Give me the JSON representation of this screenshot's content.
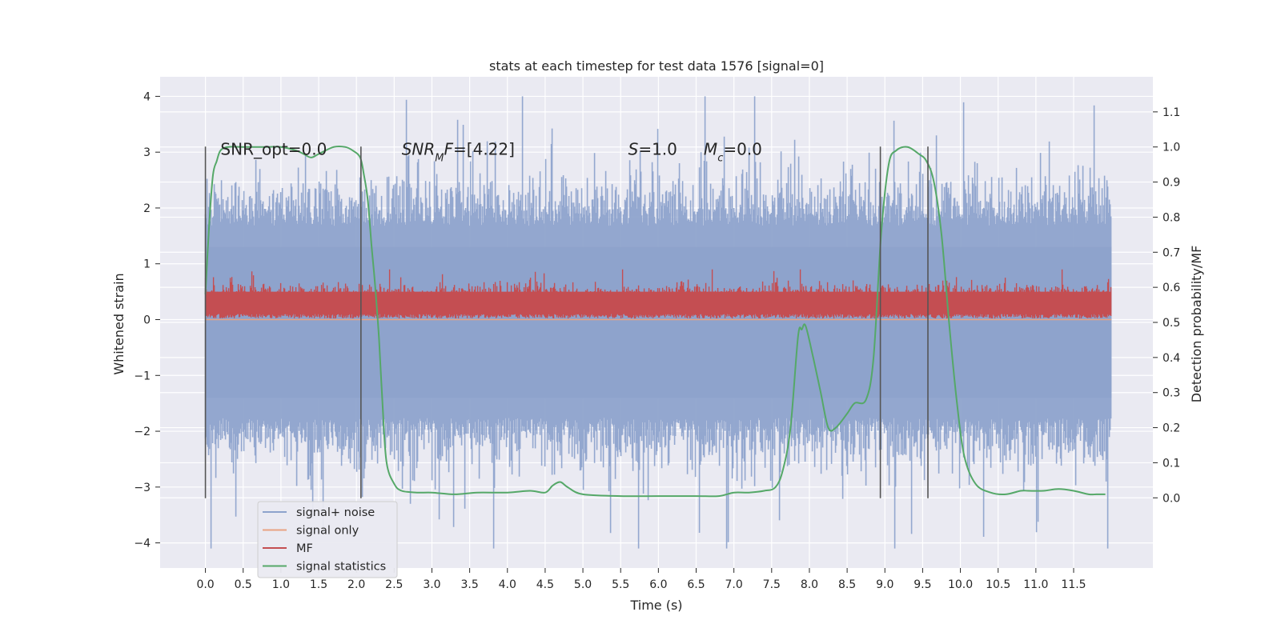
{
  "chart_data": {
    "type": "line",
    "title": "stats at each timestep for test data 1576 [signal=0]",
    "xlabel": "Time (s)",
    "ylabel": "Whitened strain",
    "y2label": "Detection probability/MF",
    "xlim": [
      -0.6,
      12.55
    ],
    "ylim": [
      -4.45,
      4.35
    ],
    "y2lim": [
      -0.2,
      1.2
    ],
    "xticks": [
      0.0,
      0.5,
      1.0,
      1.5,
      2.0,
      2.5,
      3.0,
      3.5,
      4.0,
      4.5,
      5.0,
      5.5,
      6.0,
      6.5,
      7.0,
      7.5,
      8.0,
      8.5,
      9.0,
      9.5,
      10.0,
      10.5,
      11.0,
      11.5
    ],
    "xtick_labels": [
      "0.0",
      "0.5",
      "1.0",
      "1.5",
      "2.0",
      "2.5",
      "3.0",
      "3.5",
      "4.0",
      "4.5",
      "5.0",
      "5.5",
      "6.0",
      "6.5",
      "7.0",
      "7.5",
      "8.0",
      "8.5",
      "9.0",
      "9.5",
      "10.0",
      "10.5",
      "11.0",
      "11.5"
    ],
    "yticks": [
      -4,
      -3,
      -2,
      -1,
      0,
      1,
      2,
      3,
      4
    ],
    "ytick_labels": [
      "−4",
      "−3",
      "−2",
      "−1",
      "0",
      "1",
      "2",
      "3",
      "4"
    ],
    "y2ticks": [
      0.0,
      0.1,
      0.2,
      0.3,
      0.4,
      0.5,
      0.6,
      0.7,
      0.8,
      0.9,
      1.0,
      1.1
    ],
    "y2tick_labels": [
      "0.0",
      "0.1",
      "0.2",
      "0.3",
      "0.4",
      "0.5",
      "0.6",
      "0.7",
      "0.8",
      "0.9",
      "1.0",
      "1.1"
    ],
    "grid": true,
    "legend_position": "lower-left",
    "legend": [
      {
        "name": "signal+ noise",
        "color": "#8ea3cc"
      },
      {
        "name": "signal only",
        "color": "#e8a283"
      },
      {
        "name": "MF",
        "color": "#c44e52"
      },
      {
        "name": "signal statistics",
        "color": "#55a868"
      }
    ],
    "annotations": [
      {
        "text": "SNR_opt=0.0",
        "x": 0.2,
        "y": 3.05
      },
      {
        "text": "SNR_MF=[4.22]",
        "x": 2.6,
        "y": 3.05
      },
      {
        "text": "S=1.0",
        "x": 5.6,
        "y": 3.05
      },
      {
        "text": "M_c=0.0",
        "x": 6.6,
        "y": 3.05
      }
    ],
    "vertical_lines": {
      "x": [
        0.0,
        2.06,
        8.94,
        9.57
      ],
      "ymin": -3.2,
      "ymax": 3.1,
      "color": "#555555"
    },
    "series": [
      {
        "name": "signal+ noise",
        "color": "#8ea3cc",
        "envelope": {
          "x_range": [
            0.0,
            12.0
          ],
          "upper_typical": 2.1,
          "lower_typical": -2.2,
          "peak_max": 4.0,
          "peak_min": -4.1
        }
      },
      {
        "name": "signal only",
        "color": "#e8a283",
        "values_constant": 0.0
      },
      {
        "name": "MF",
        "color": "#c44e52",
        "envelope": {
          "x_range": [
            0.0,
            12.0
          ],
          "lower": 0.02,
          "upper_typical": 0.6,
          "peak_max": 0.9
        }
      },
      {
        "name": "signal statistics",
        "color": "#55a868",
        "axis": "right",
        "x": [
          0.0,
          0.05,
          0.1,
          0.15,
          0.2,
          0.3,
          0.5,
          0.8,
          1.0,
          1.2,
          1.3,
          1.4,
          1.5,
          1.7,
          1.85,
          1.95,
          2.05,
          2.1,
          2.15,
          2.2,
          2.25,
          2.3,
          2.35,
          2.4,
          2.5,
          2.6,
          2.8,
          3.0,
          3.3,
          3.6,
          4.0,
          4.3,
          4.5,
          4.6,
          4.7,
          4.8,
          5.0,
          5.5,
          6.0,
          6.5,
          6.8,
          7.0,
          7.2,
          7.4,
          7.55,
          7.65,
          7.75,
          7.85,
          7.9,
          7.95,
          8.05,
          8.15,
          8.25,
          8.35,
          8.5,
          8.6,
          8.75,
          8.85,
          8.95,
          9.05,
          9.15,
          9.3,
          9.45,
          9.55,
          9.65,
          9.75,
          9.85,
          9.95,
          10.05,
          10.2,
          10.4,
          10.6,
          10.8,
          10.9,
          11.1,
          11.3,
          11.5,
          11.7,
          11.8,
          11.92
        ],
        "values": [
          0.58,
          0.78,
          0.92,
          0.96,
          0.99,
          1.0,
          1.0,
          1.0,
          1.0,
          0.99,
          0.98,
          0.97,
          0.98,
          1.0,
          1.0,
          0.99,
          0.97,
          0.92,
          0.85,
          0.72,
          0.6,
          0.45,
          0.25,
          0.1,
          0.04,
          0.02,
          0.015,
          0.015,
          0.01,
          0.015,
          0.015,
          0.02,
          0.015,
          0.035,
          0.045,
          0.03,
          0.01,
          0.005,
          0.005,
          0.005,
          0.005,
          0.015,
          0.015,
          0.02,
          0.03,
          0.08,
          0.2,
          0.46,
          0.48,
          0.49,
          0.4,
          0.3,
          0.2,
          0.2,
          0.24,
          0.27,
          0.28,
          0.4,
          0.75,
          0.95,
          0.99,
          1.0,
          0.98,
          0.96,
          0.9,
          0.75,
          0.5,
          0.28,
          0.12,
          0.04,
          0.015,
          0.01,
          0.02,
          0.02,
          0.02,
          0.025,
          0.02,
          0.01,
          0.01,
          0.01
        ]
      }
    ]
  }
}
